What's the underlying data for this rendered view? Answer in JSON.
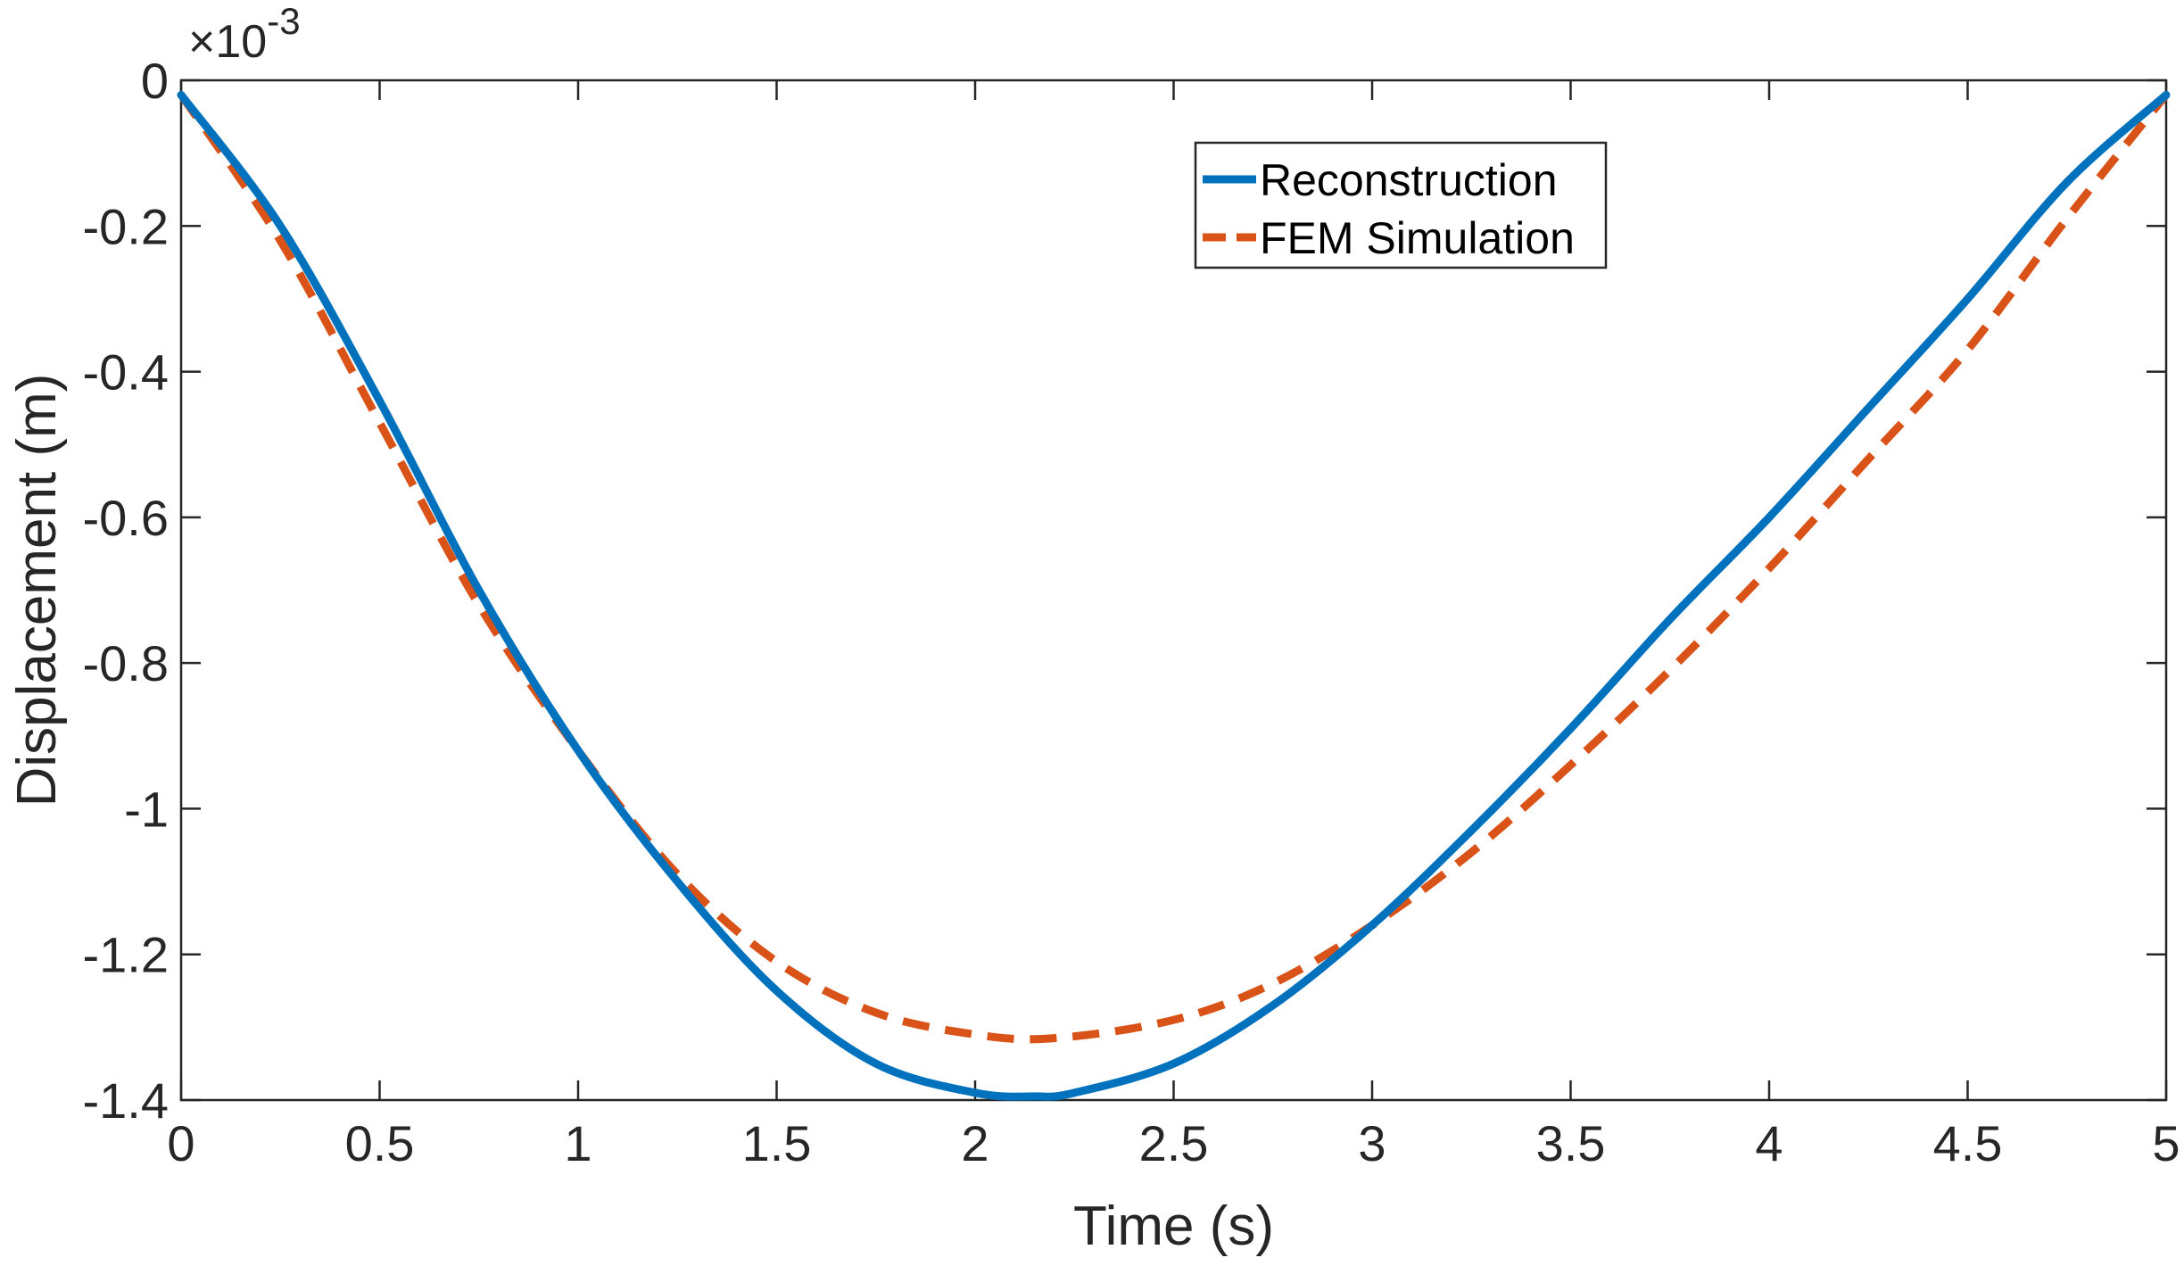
{
  "chart_data": {
    "type": "line",
    "title": "",
    "xlabel": "Time (s)",
    "ylabel": "Displacement (m)",
    "xlim": [
      0,
      5
    ],
    "ylim": [
      -1.4,
      0
    ],
    "y_scale_exponent": {
      "base": "×10",
      "power": "-3"
    },
    "xticks": [
      0,
      0.5,
      1,
      1.5,
      2,
      2.5,
      3,
      3.5,
      4,
      4.5,
      5
    ],
    "xtick_labels": [
      "0",
      "0.5",
      "1",
      "1.5",
      "2",
      "2.5",
      "3",
      "3.5",
      "4",
      "4.5",
      "5"
    ],
    "yticks": [
      0,
      -0.2,
      -0.4,
      -0.6,
      -0.8,
      -1,
      -1.2,
      -1.4
    ],
    "ytick_labels": [
      "0",
      "-0.2",
      "-0.4",
      "-0.6",
      "-0.8",
      "-1",
      "-1.2",
      "-1.4"
    ],
    "grid": false,
    "legend_location": "top-right",
    "series": [
      {
        "name": "Reconstruction",
        "style": "solid",
        "color": "#0072BD",
        "x": [
          0,
          0.25,
          0.5,
          0.75,
          1.0,
          1.25,
          1.5,
          1.75,
          2.0,
          2.15,
          2.25,
          2.5,
          2.75,
          3.0,
          3.25,
          3.5,
          3.75,
          4.0,
          4.25,
          4.5,
          4.75,
          5.0
        ],
        "y": [
          -0.02,
          -0.2,
          -0.44,
          -0.7,
          -0.92,
          -1.1,
          -1.25,
          -1.35,
          -1.39,
          -1.395,
          -1.39,
          -1.35,
          -1.27,
          -1.16,
          -1.03,
          -0.89,
          -0.74,
          -0.6,
          -0.45,
          -0.3,
          -0.14,
          -0.02
        ]
      },
      {
        "name": "FEM Simulation",
        "style": "dashed",
        "color": "#D95319",
        "x": [
          0,
          0.25,
          0.5,
          0.75,
          1.0,
          1.25,
          1.5,
          1.75,
          2.0,
          2.2,
          2.5,
          2.75,
          3.0,
          3.25,
          3.5,
          3.75,
          4.0,
          4.25,
          4.5,
          4.75,
          5.0
        ],
        "y": [
          -0.02,
          -0.22,
          -0.47,
          -0.72,
          -0.92,
          -1.09,
          -1.21,
          -1.28,
          -1.31,
          -1.315,
          -1.29,
          -1.24,
          -1.16,
          -1.06,
          -0.94,
          -0.81,
          -0.67,
          -0.52,
          -0.37,
          -0.19,
          -0.02
        ]
      }
    ]
  }
}
